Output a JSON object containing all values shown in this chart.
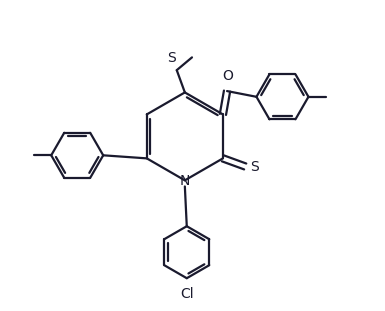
{
  "bg_color": "#ffffff",
  "bond_color": "#1a1a2e",
  "atom_color": "#1a1a2e",
  "line_width": 1.6,
  "font_size": 10,
  "figsize": [
    3.85,
    3.11
  ],
  "dpi": 100,
  "xlim": [
    0,
    10
  ],
  "ylim": [
    0,
    8.1
  ]
}
